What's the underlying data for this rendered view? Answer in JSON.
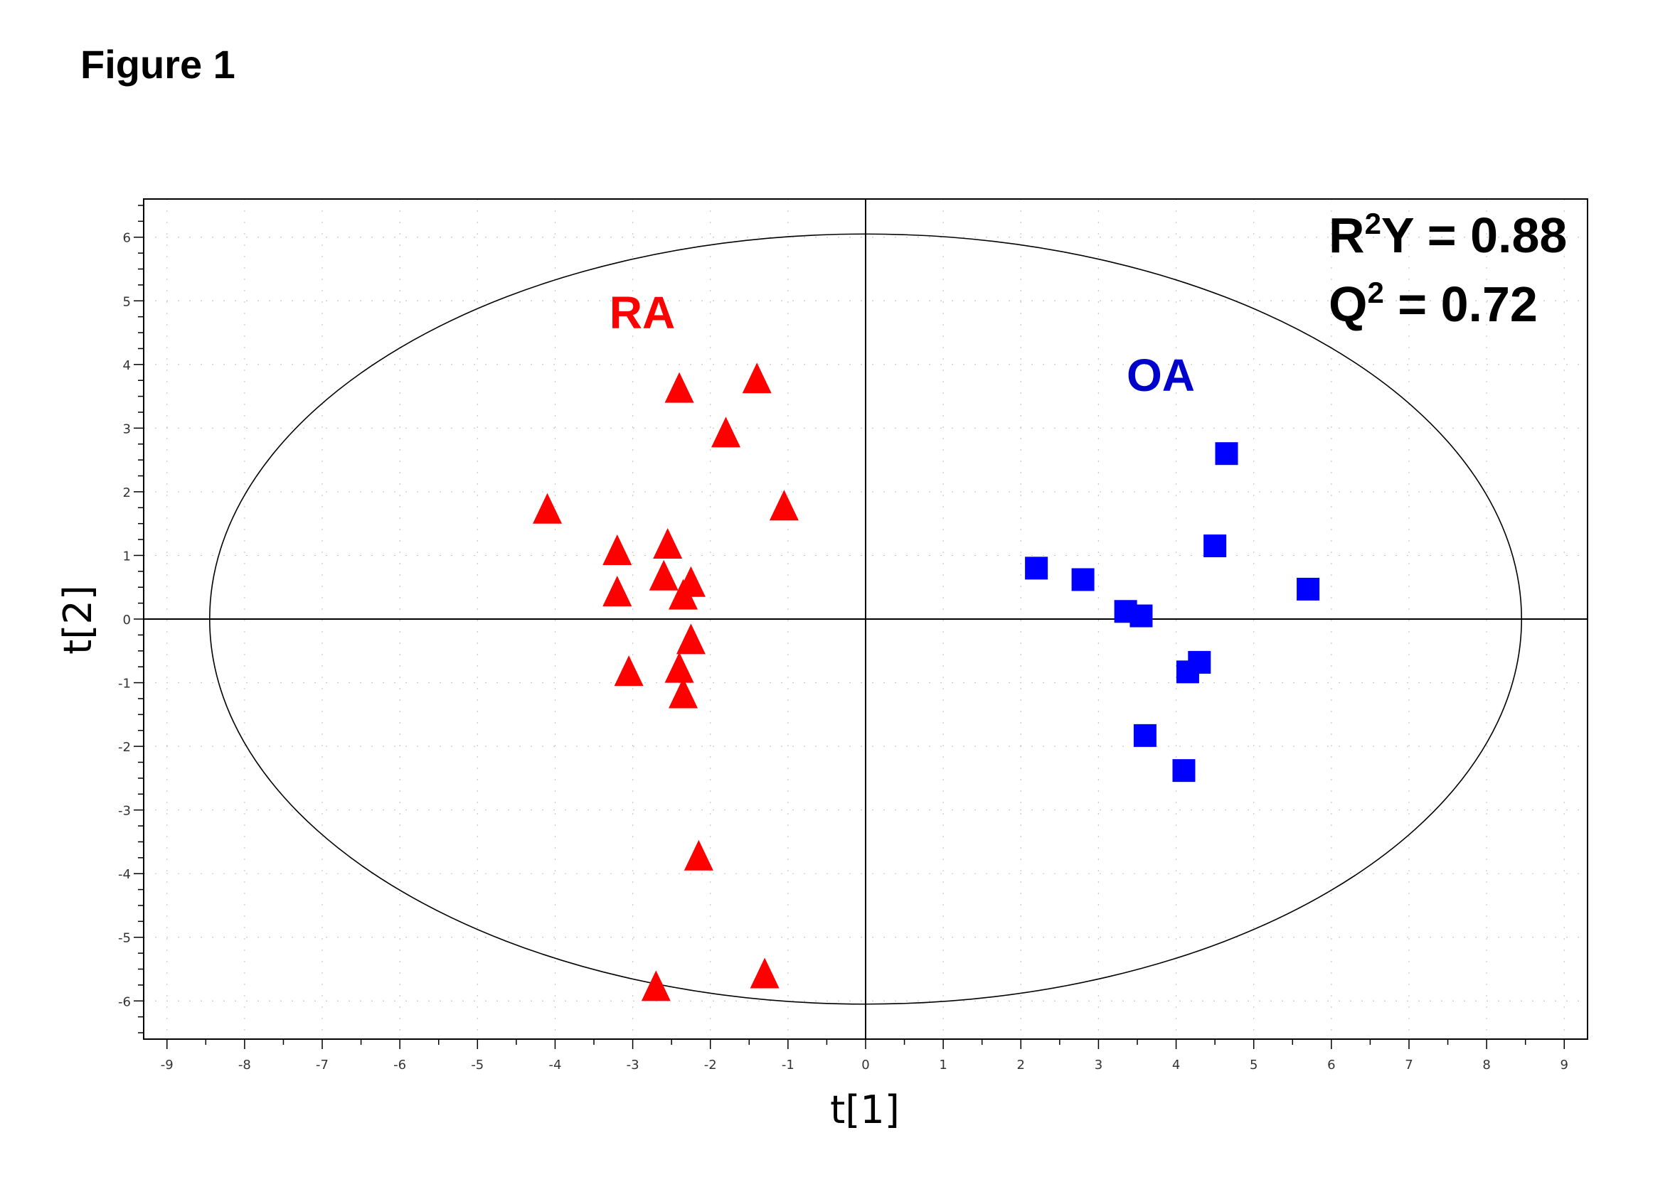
{
  "figure": {
    "label": "Figure 1"
  },
  "chart_data": {
    "type": "scatter",
    "xlabel": "t[1]",
    "ylabel": "t[2]",
    "xlim": [
      -9.3,
      9.3
    ],
    "ylim": [
      -6.6,
      6.6
    ],
    "x_ticks": [
      -9,
      -8,
      -7,
      -6,
      -5,
      -4,
      -3,
      -2,
      -1,
      0,
      1,
      2,
      3,
      4,
      5,
      6,
      7,
      8,
      9
    ],
    "y_ticks": [
      6,
      5,
      4,
      3,
      2,
      1,
      0,
      -1,
      -2,
      -3,
      -4,
      -5,
      -6
    ],
    "grid": true,
    "ellipse": {
      "cx": 0,
      "cy": 0,
      "rx": 8.45,
      "ry": 6.05
    },
    "annotations": {
      "r2y": {
        "base": "R",
        "sup": "2",
        "rest": "Y = 0.88"
      },
      "q2": {
        "base": "Q",
        "sup": "2",
        "rest": " = 0.72"
      }
    },
    "series": [
      {
        "name": "RA",
        "marker": "triangle",
        "color": "#ff0000",
        "points": [
          [
            -2.4,
            3.6
          ],
          [
            -1.4,
            3.75
          ],
          [
            -1.8,
            2.9
          ],
          [
            -4.1,
            1.7
          ],
          [
            -1.05,
            1.75
          ],
          [
            -3.2,
            1.05
          ],
          [
            -2.55,
            1.15
          ],
          [
            -2.6,
            0.65
          ],
          [
            -2.25,
            0.55
          ],
          [
            -3.2,
            0.4
          ],
          [
            -2.35,
            0.35
          ],
          [
            -2.25,
            -0.35
          ],
          [
            -3.05,
            -0.85
          ],
          [
            -2.4,
            -0.8
          ],
          [
            -2.35,
            -1.2
          ],
          [
            -2.15,
            -3.75
          ],
          [
            -1.3,
            -5.6
          ],
          [
            -2.7,
            -5.8
          ]
        ]
      },
      {
        "name": "OA",
        "marker": "square",
        "color": "#0000ff",
        "points": [
          [
            4.65,
            2.6
          ],
          [
            4.5,
            1.15
          ],
          [
            2.2,
            0.8
          ],
          [
            2.8,
            0.62
          ],
          [
            5.7,
            0.47
          ],
          [
            3.35,
            0.12
          ],
          [
            3.55,
            0.05
          ],
          [
            4.3,
            -0.68
          ],
          [
            4.15,
            -0.83
          ],
          [
            3.6,
            -1.83
          ],
          [
            4.1,
            -2.38
          ]
        ]
      }
    ]
  }
}
